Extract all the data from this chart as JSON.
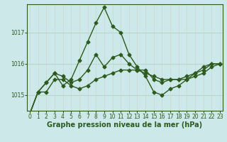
{
  "title": "Graphe pression niveau de la mer (hPa)",
  "background_color": "#cce8e8",
  "line_color": "#2d5a1e",
  "grid_color_h": "#b8d4c8",
  "grid_color_v": "#c8d8d0",
  "hours": [
    0,
    1,
    2,
    3,
    4,
    5,
    6,
    7,
    8,
    9,
    10,
    11,
    12,
    13,
    14,
    15,
    16,
    17,
    18,
    19,
    20,
    21,
    22,
    23
  ],
  "series": [
    [
      1014.4,
      1015.1,
      1015.1,
      1015.5,
      1015.5,
      1015.3,
      1015.2,
      1015.3,
      1015.5,
      1015.6,
      1015.7,
      1015.8,
      1015.8,
      1015.8,
      1015.7,
      1015.6,
      1015.5,
      1015.5,
      1015.5,
      1015.5,
      1015.6,
      1015.7,
      1015.9,
      1016.0
    ],
    [
      1014.4,
      1015.1,
      1015.4,
      1015.7,
      1015.6,
      1015.4,
      1015.5,
      1015.8,
      1016.3,
      1015.9,
      1016.2,
      1016.3,
      1016.0,
      1015.8,
      1015.8,
      1015.5,
      1015.4,
      1015.5,
      1015.5,
      1015.6,
      1015.7,
      1015.9,
      1016.0,
      1016.0
    ],
    [
      1014.4,
      1015.1,
      1015.5,
      1015.8,
      1015.3,
      1015.3,
      1016.0,
      1016.5,
      1016.9,
      1017.4,
      1017.1,
      1017.1,
      1016.4,
      1016.1,
      1015.8,
      1015.1,
      1015.0,
      1015.2,
      1015.3,
      1015.5,
      1015.7,
      1015.8,
      1015.9,
      1016.0
    ]
  ],
  "series2_peak": [
    1014.4,
    1015.1,
    1015.4,
    1015.7,
    1015.3,
    1015.5,
    1016.1,
    1016.7,
    1017.3,
    1017.8,
    1017.2,
    1017.0,
    1016.3,
    1015.9,
    1015.6,
    1015.1,
    1015.0,
    1015.2,
    1015.3,
    1015.5,
    1015.7,
    1015.8,
    1016.0,
    1016.0
  ],
  "ylim": [
    1014.5,
    1017.9
  ],
  "yticks": [
    1015,
    1016,
    1017
  ],
  "xlim": [
    -0.3,
    23.3
  ],
  "marker": "D",
  "markersize": 2.5,
  "linewidth": 1.0,
  "fontsize_title": 7,
  "fontsize_tick": 5.5
}
